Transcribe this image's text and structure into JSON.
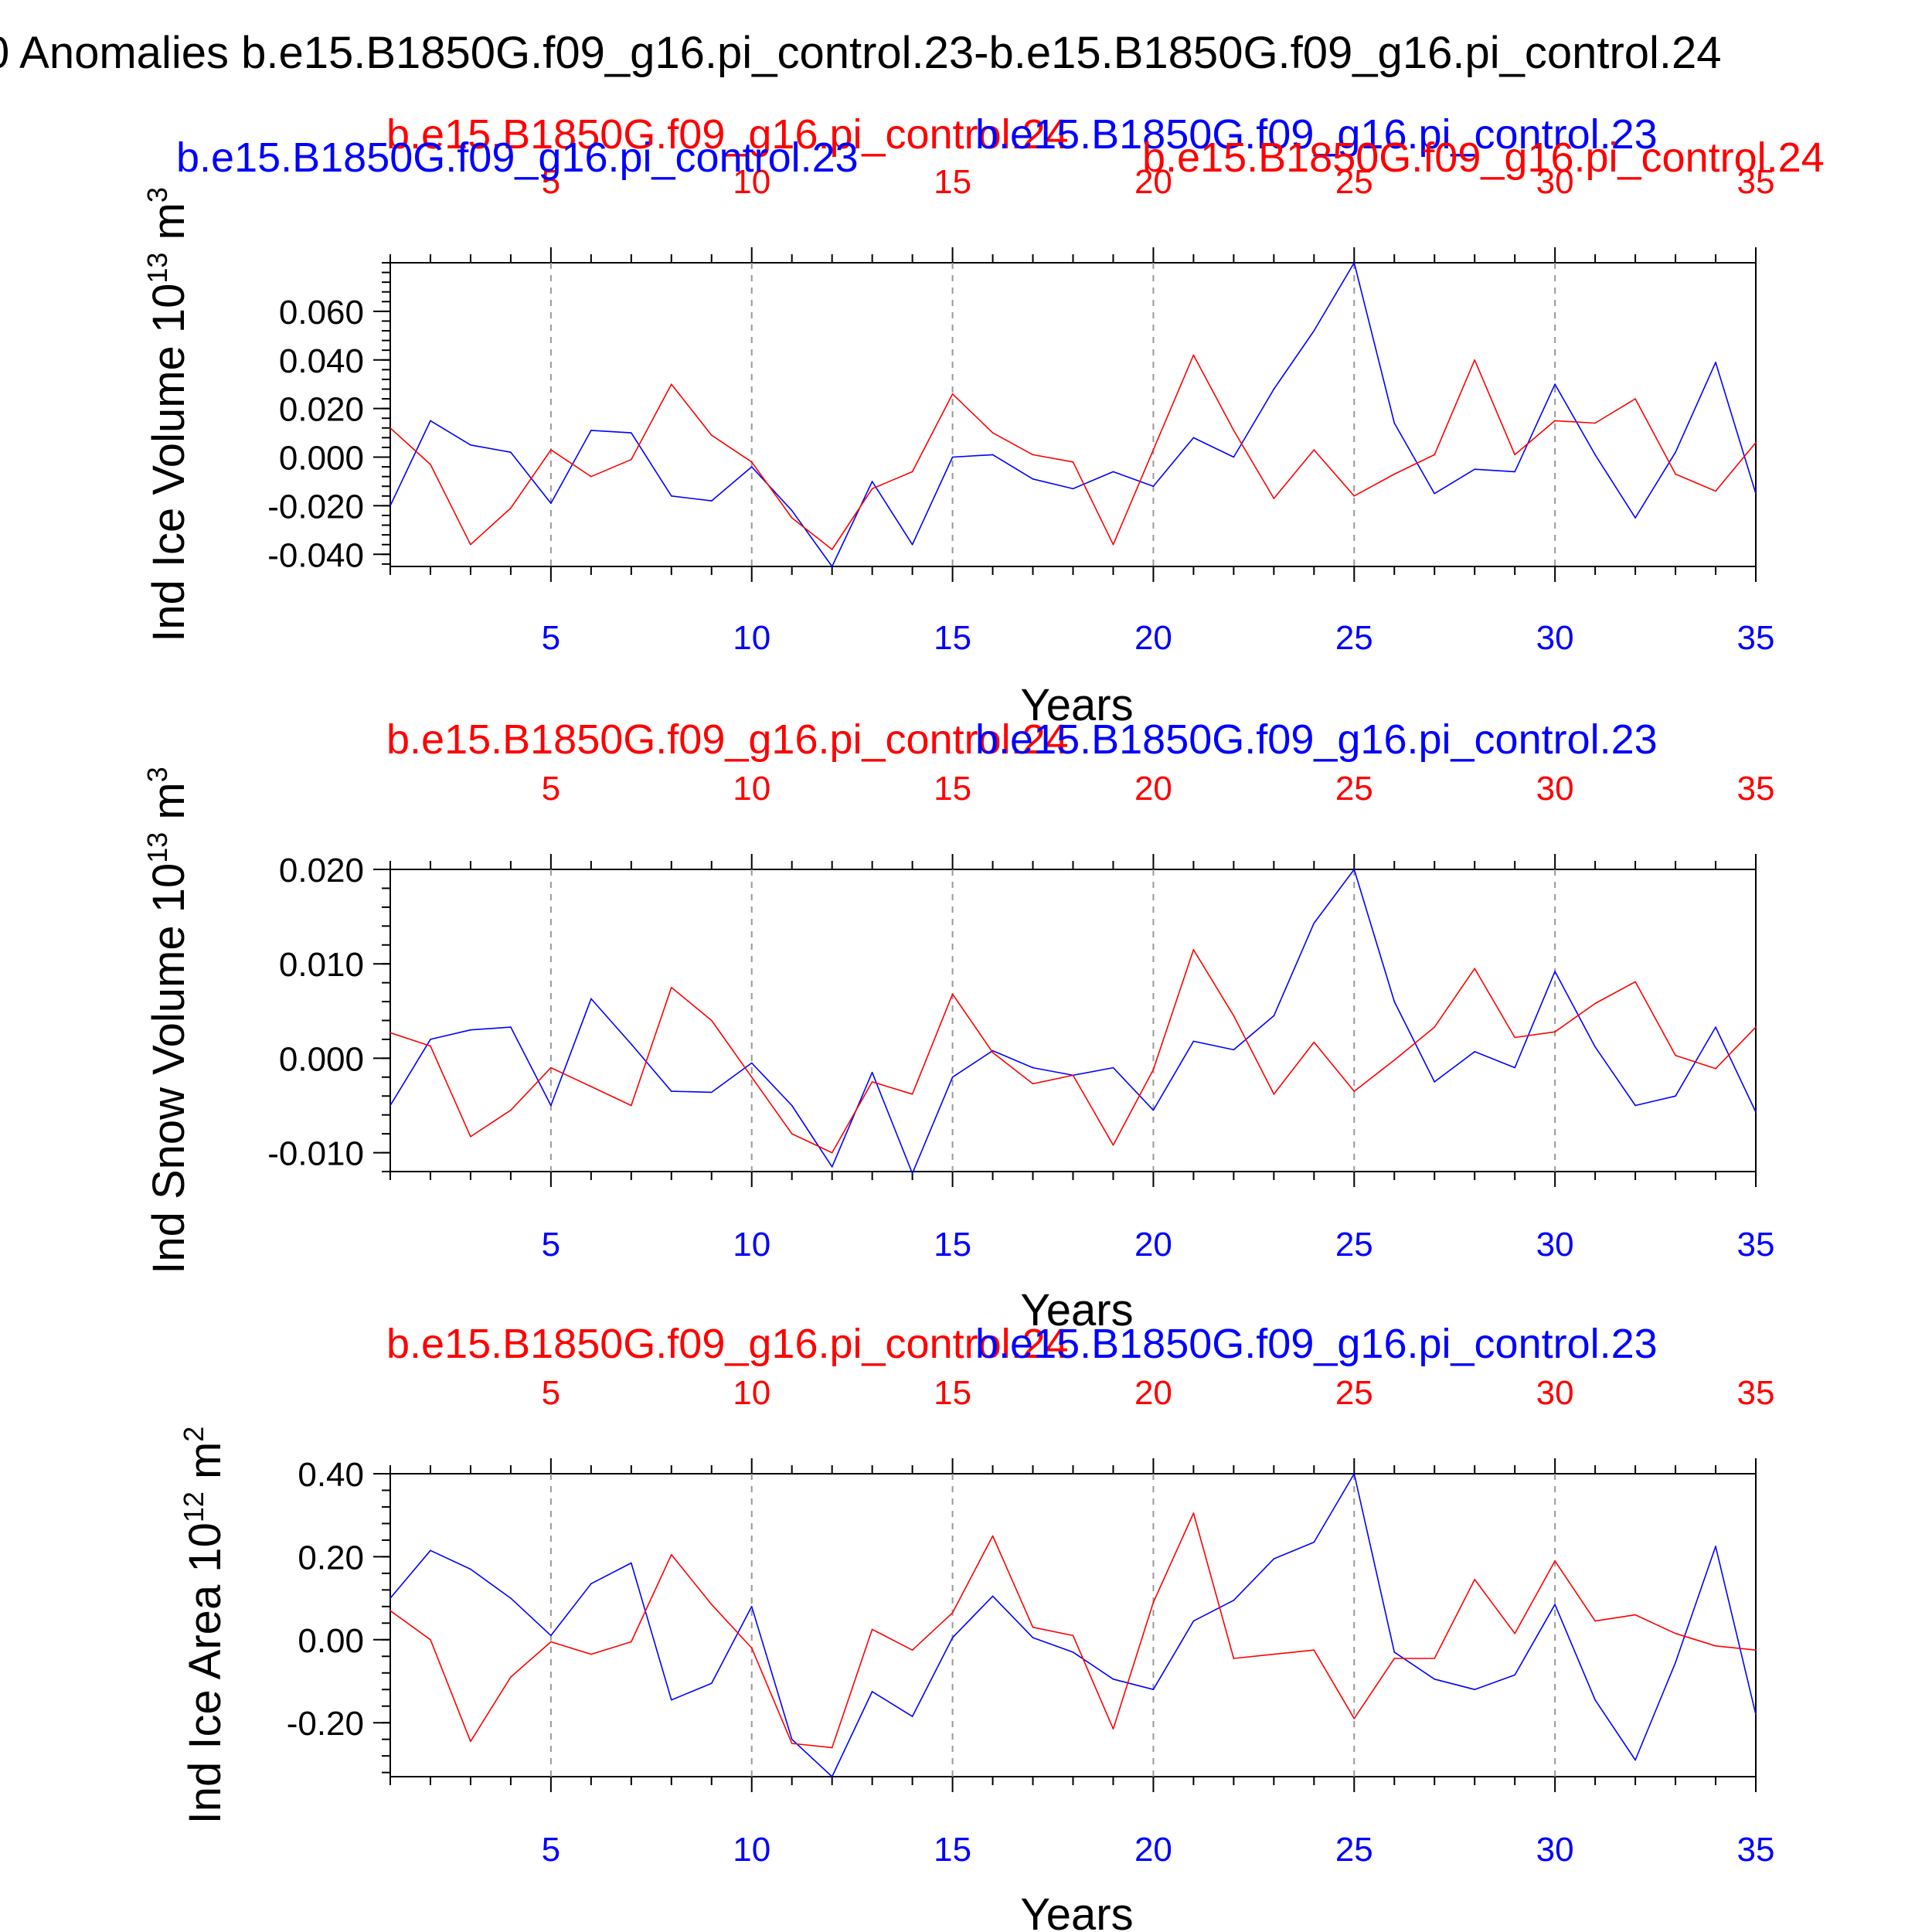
{
  "page_title": "0 Anomalies b.e15.B1850G.f09_g16.pi_control.23-b.e15.B1850G.f09_g16.pi_control.24",
  "colors": {
    "blue": "#0000ff",
    "red": "#ff0000",
    "black": "#000000",
    "grid": "#999999"
  },
  "chart_data": [
    {
      "type": "line",
      "id": "ice-volume",
      "ylabel": "Ind Ice Volume 10",
      "ylabel_exp": "13",
      "ylabel_unit": " m",
      "ylabel_unit_exp": "3",
      "xlabel": "Years",
      "top_label_red": "b.e15.B1850G.f09_g16.pi_control.24",
      "top_label_blue": "b.e15.B1850G.f09_g16.pi_control.23",
      "right_label_red": "b.e15.B1850G.f09_g16.pi_control.24",
      "top_left_label_blue": "b.e15.B1850G.f09_g16.pi_control.23",
      "xlim": [
        1,
        35
      ],
      "ylim": [
        -0.045,
        0.08
      ],
      "xticks": [
        "5",
        "10",
        "15",
        "20",
        "25",
        "30",
        "35"
      ],
      "yticks": [
        "0.060",
        "0.040",
        "0.020",
        "0.000",
        "-0.020",
        "-0.040"
      ],
      "ytick_values": [
        0.06,
        0.04,
        0.02,
        0.0,
        -0.02,
        -0.04
      ],
      "series": [
        {
          "name": "b.e15.B1850G.f09_g16.pi_control.23",
          "color": "#0000ff",
          "values": [
            -0.02,
            0.015,
            0.005,
            0.002,
            -0.019,
            0.011,
            0.01,
            -0.016,
            -0.018,
            -0.004,
            -0.022,
            -0.045,
            -0.01,
            -0.036,
            0.0,
            0.001,
            -0.009,
            -0.013,
            -0.006,
            -0.012,
            0.008,
            0.0,
            0.028,
            0.052,
            0.08,
            0.014,
            -0.015,
            -0.005,
            -0.006,
            0.03,
            0.001,
            -0.025,
            0.002,
            0.039,
            -0.015
          ]
        },
        {
          "name": "b.e15.B1850G.f09_g16.pi_control.24",
          "color": "#ff0000",
          "values": [
            0.012,
            -0.003,
            -0.036,
            -0.021,
            0.003,
            -0.008,
            -0.001,
            0.03,
            0.009,
            -0.002,
            -0.025,
            -0.038,
            -0.013,
            -0.006,
            0.026,
            0.01,
            0.001,
            -0.002,
            -0.036,
            0.003,
            0.042,
            0.011,
            -0.017,
            0.003,
            -0.016,
            -0.007,
            0.001,
            0.04,
            0.001,
            0.015,
            0.014,
            0.024,
            -0.007,
            -0.014,
            0.006
          ]
        }
      ]
    },
    {
      "type": "line",
      "id": "snow-volume",
      "ylabel": "Ind Snow Volume 10",
      "ylabel_exp": "13",
      "ylabel_unit": " m",
      "ylabel_unit_exp": "3",
      "xlabel": "Years",
      "top_label_red": "b.e15.B1850G.f09_g16.pi_control.24",
      "top_label_blue": "b.e15.B1850G.f09_g16.pi_control.23",
      "xlim": [
        1,
        35
      ],
      "ylim": [
        -0.012,
        0.02
      ],
      "xticks": [
        "5",
        "10",
        "15",
        "20",
        "25",
        "30",
        "35"
      ],
      "yticks": [
        "0.020",
        "0.010",
        "0.000",
        "-0.010"
      ],
      "ytick_values": [
        0.02,
        0.01,
        0.0,
        -0.01
      ],
      "series": [
        {
          "name": "b.e15.B1850G.f09_g16.pi_control.23",
          "color": "#0000ff",
          "values": [
            -0.005,
            0.002,
            0.003,
            0.0033,
            -0.005,
            0.0063,
            0.0015,
            -0.0035,
            -0.0036,
            -0.0005,
            -0.005,
            -0.0115,
            -0.0015,
            -0.0122,
            -0.002,
            0.0008,
            -0.001,
            -0.0018,
            -0.001,
            -0.0055,
            0.0018,
            0.0009,
            0.0045,
            0.0143,
            0.02,
            0.006,
            -0.0025,
            0.0007,
            -0.001,
            0.0092,
            0.0012,
            -0.005,
            -0.004,
            0.0033,
            -0.0057
          ]
        },
        {
          "name": "b.e15.B1850G.f09_g16.pi_control.24",
          "color": "#ff0000",
          "values": [
            0.0027,
            0.0013,
            -0.0083,
            -0.0055,
            -0.001,
            -0.003,
            -0.005,
            0.0075,
            0.004,
            -0.002,
            -0.008,
            -0.01,
            -0.0025,
            -0.0038,
            0.0068,
            0.0006,
            -0.0027,
            -0.0018,
            -0.0092,
            -0.0012,
            0.0115,
            0.0045,
            -0.0038,
            0.0017,
            -0.0035,
            -0.0002,
            0.0033,
            0.0095,
            0.0022,
            0.0028,
            0.0058,
            0.0081,
            0.0003,
            -0.0011,
            0.0033
          ]
        }
      ]
    },
    {
      "type": "line",
      "id": "ice-area",
      "ylabel": "Ind Ice Area 10",
      "ylabel_exp": "12",
      "ylabel_unit": " m",
      "ylabel_unit_exp": "2",
      "xlabel": "Years",
      "top_label_red": "b.e15.B1850G.f09_g16.pi_control.24",
      "top_label_blue": "b.e15.B1850G.f09_g16.pi_control.23",
      "xlim": [
        1,
        35
      ],
      "ylim": [
        -0.33,
        0.4
      ],
      "xticks": [
        "5",
        "10",
        "15",
        "20",
        "25",
        "30",
        "35"
      ],
      "yticks": [
        "0.40",
        "0.20",
        "0.00",
        "-0.20"
      ],
      "ytick_values": [
        0.4,
        0.2,
        0.0,
        -0.2
      ],
      "series": [
        {
          "name": "b.e15.B1850G.f09_g16.pi_control.23",
          "color": "#0000ff",
          "values": [
            0.1,
            0.215,
            0.17,
            0.1,
            0.01,
            0.135,
            0.185,
            -0.145,
            -0.105,
            0.08,
            -0.24,
            -0.33,
            -0.125,
            -0.185,
            0.005,
            0.105,
            0.005,
            -0.03,
            -0.095,
            -0.12,
            0.045,
            0.095,
            0.195,
            0.235,
            0.4,
            -0.03,
            -0.095,
            -0.12,
            -0.085,
            0.085,
            -0.145,
            -0.29,
            -0.055,
            0.225,
            -0.18
          ]
        },
        {
          "name": "b.e15.B1850G.f09_g16.pi_control.24",
          "color": "#ff0000",
          "values": [
            0.07,
            0.0,
            -0.245,
            -0.09,
            -0.005,
            -0.035,
            -0.005,
            0.205,
            0.085,
            -0.02,
            -0.25,
            -0.26,
            0.025,
            -0.025,
            0.065,
            0.25,
            0.03,
            0.01,
            -0.215,
            0.09,
            0.305,
            -0.045,
            -0.035,
            -0.025,
            -0.19,
            -0.045,
            -0.045,
            0.145,
            0.015,
            0.19,
            0.045,
            0.06,
            0.015,
            -0.015,
            -0.025
          ]
        }
      ]
    }
  ]
}
